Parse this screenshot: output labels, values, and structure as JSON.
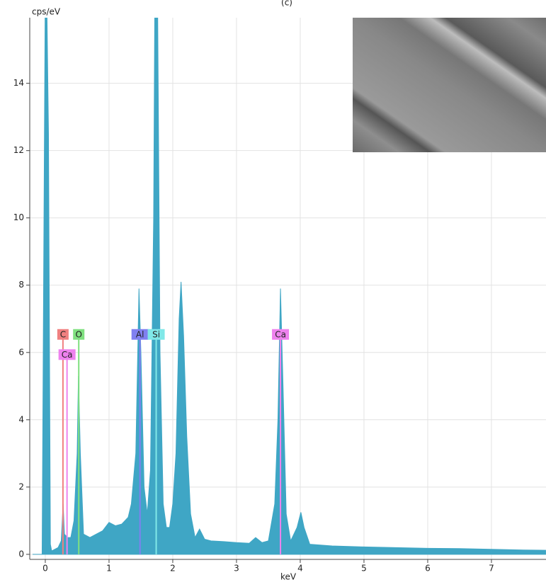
{
  "chart_data": {
    "type": "area",
    "title": "(c)",
    "y_label": "cps/eV",
    "x_label": "keV",
    "color": "#3fa6c5",
    "grid": true,
    "xlim": [
      -0.244,
      7.856
    ],
    "ylim": [
      -0.15,
      15.95
    ],
    "xticks": [
      0,
      1,
      2,
      3,
      4,
      5,
      6,
      7
    ],
    "yticks": [
      0,
      2,
      4,
      6,
      8,
      10,
      12,
      14
    ],
    "x": [
      -0.2,
      -0.05,
      0,
      0.02,
      0.05,
      0.08,
      0.1,
      0.2,
      0.25,
      0.28,
      0.3,
      0.35,
      0.4,
      0.45,
      0.5,
      0.52,
      0.55,
      0.6,
      0.7,
      0.8,
      0.9,
      1.0,
      1.1,
      1.2,
      1.3,
      1.35,
      1.42,
      1.47,
      1.5,
      1.55,
      1.6,
      1.65,
      1.7,
      1.72,
      1.76,
      1.8,
      1.85,
      1.9,
      1.95,
      2.0,
      2.05,
      2.1,
      2.13,
      2.17,
      2.22,
      2.28,
      2.35,
      2.42,
      2.5,
      2.6,
      2.8,
      3.0,
      3.2,
      3.3,
      3.4,
      3.5,
      3.6,
      3.65,
      3.69,
      3.73,
      3.78,
      3.85,
      3.95,
      4.01,
      4.06,
      4.15,
      4.5,
      5.0,
      5.5,
      6.0,
      6.5,
      7.0,
      7.5,
      7.85
    ],
    "values": [
      0,
      0,
      17,
      17,
      12.5,
      0.3,
      0.1,
      0.2,
      0.4,
      1.5,
      0.6,
      0.5,
      0.5,
      1.0,
      3,
      5.3,
      3,
      0.6,
      0.5,
      0.6,
      0.7,
      0.95,
      0.85,
      0.9,
      1.1,
      1.5,
      3,
      7.9,
      6,
      2,
      1.2,
      2.5,
      10,
      17,
      17,
      6,
      1.5,
      0.8,
      0.8,
      1.5,
      3,
      7,
      8.1,
      6.5,
      3.5,
      1.2,
      0.5,
      0.75,
      0.45,
      0.4,
      0.38,
      0.35,
      0.33,
      0.5,
      0.35,
      0.4,
      1.5,
      4,
      7.9,
      5,
      1.2,
      0.4,
      0.8,
      1.25,
      0.8,
      0.3,
      0.25,
      0.22,
      0.2,
      0.18,
      0.17,
      0.15,
      0.13,
      0.12
    ],
    "markers": [
      {
        "label": "C",
        "x": 0.277,
        "height": 6.4,
        "color": "#f08080"
      },
      {
        "label": "O",
        "x": 0.525,
        "height": 6.4,
        "color": "#80e080"
      },
      {
        "label": "Ca",
        "x": 0.341,
        "height": 5.8,
        "color": "#ee82ee"
      },
      {
        "label": "Al",
        "x": 1.486,
        "height": 6.4,
        "color": "#8080f0"
      },
      {
        "label": "Si",
        "x": 1.74,
        "height": 6.4,
        "color": "#80e8e8"
      },
      {
        "label": "Ca",
        "x": 3.69,
        "height": 6.4,
        "color": "#ee82ee"
      }
    ]
  }
}
